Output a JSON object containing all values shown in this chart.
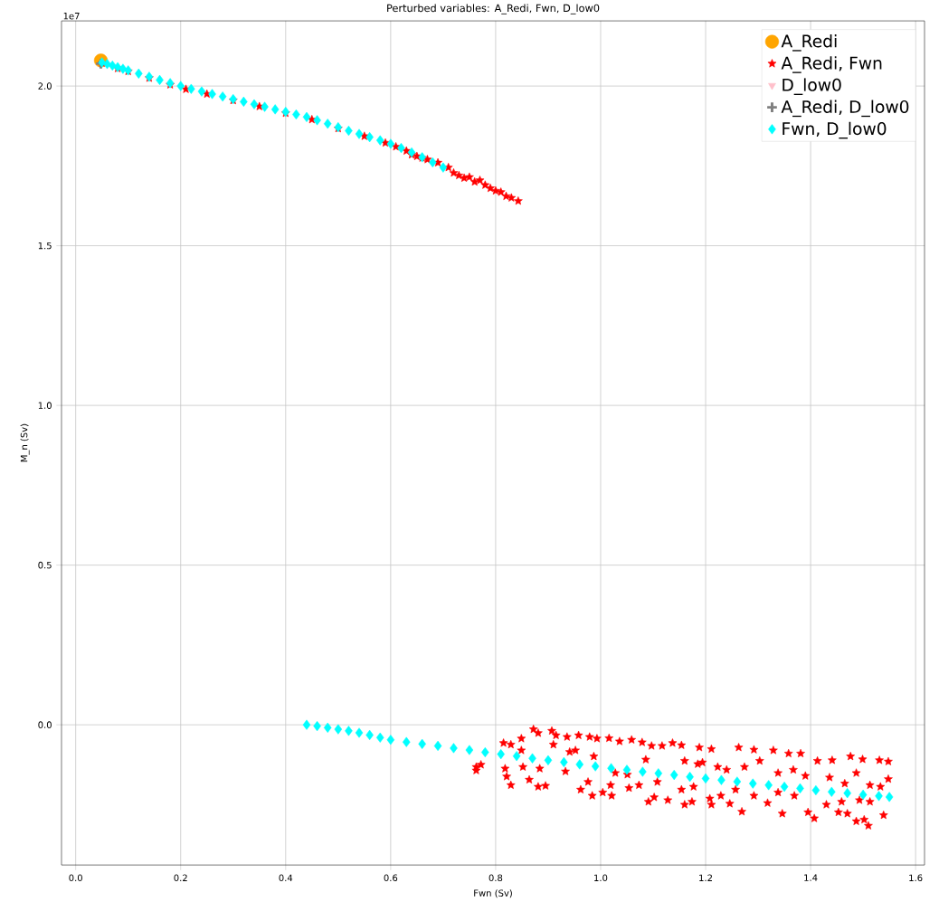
{
  "chart_data": {
    "type": "scatter",
    "title": "Perturbed variables: A_Redi, Fwn, D_low0",
    "xlabel": "Fwn (Sv)",
    "ylabel": "M_n (Sv)",
    "annotations": [
      "1e7"
    ],
    "xlim": [
      -0.027,
      1.617
    ],
    "ylim": [
      -0.439,
      2.204
    ],
    "xticks": [
      {
        "value": 0,
        "label": "0.0"
      },
      0.2,
      0.4,
      0.6,
      0.8,
      {
        "value": 1,
        "label": "1.0"
      },
      1.2,
      1.4,
      1.6
    ],
    "yticks": [
      {
        "value": 0,
        "label": "0.0"
      },
      0.5,
      {
        "value": 1,
        "label": "1.0"
      },
      1.5,
      {
        "value": 2,
        "label": "2.0"
      }
    ],
    "grid": true,
    "legend": "top right",
    "series": [
      {
        "name": "A_Redi",
        "color": "#ffa500",
        "marker": "circle",
        "x": [
          0.048
        ],
        "values": [
          2.08
        ]
      },
      {
        "name": "A_Redi, Fwn",
        "color": "#ff0000",
        "marker": "star",
        "x": [
          0.05,
          0.08,
          0.1,
          0.14,
          0.18,
          0.21,
          0.25,
          0.3,
          0.35,
          0.4,
          0.45,
          0.5,
          0.55,
          0.59,
          0.61,
          0.63,
          0.64,
          0.65,
          0.66,
          0.67,
          0.69,
          0.71,
          0.72,
          0.73,
          0.74,
          0.75,
          0.76,
          0.77,
          0.78,
          0.79,
          0.8,
          0.81,
          0.82,
          0.83,
          0.843,
          0.763,
          0.772,
          0.763,
          0.815,
          0.829,
          0.849,
          0.872,
          0.881,
          0.907,
          0.915,
          0.936,
          0.958,
          0.979,
          0.993,
          0.849,
          0.818,
          0.821,
          0.829,
          0.864,
          0.881,
          0.895,
          0.852,
          0.884,
          0.91,
          0.941,
          0.952,
          0.933,
          0.962,
          0.984,
          0.976,
          0.987,
          1.016,
          1.036,
          1.059,
          1.079,
          1.117,
          1.137,
          1.154,
          1.188,
          1.211,
          1.263,
          1.292,
          1.329,
          1.358,
          1.381,
          1.413,
          1.441,
          1.476,
          1.499,
          1.531,
          1.548,
          1.548,
          1.533,
          1.539,
          1.51,
          1.487,
          1.502,
          1.47,
          1.453,
          1.407,
          1.395,
          1.346,
          1.318,
          1.269,
          1.246,
          1.211,
          1.208,
          1.174,
          1.16,
          1.128,
          1.102,
          1.091,
          1.073,
          1.021,
          1.004,
          1.019,
          1.054,
          1.108,
          1.154,
          1.177,
          1.229,
          1.257,
          1.292,
          1.338,
          1.369,
          1.43,
          1.459,
          1.493,
          1.513,
          1.223,
          1.24,
          1.274,
          1.303,
          1.338,
          1.367,
          1.39,
          1.436,
          1.465,
          1.487,
          1.513,
          1.051,
          1.028,
          1.086,
          1.097,
          1.16,
          1.194,
          1.185
        ],
        "values": [
          2.072,
          2.055,
          2.046,
          2.025,
          2.004,
          1.99,
          1.975,
          1.955,
          1.936,
          1.915,
          1.895,
          1.867,
          1.843,
          1.822,
          1.81,
          1.797,
          1.785,
          1.78,
          1.775,
          1.77,
          1.76,
          1.745,
          1.728,
          1.72,
          1.712,
          1.715,
          1.7,
          1.705,
          1.69,
          1.68,
          1.672,
          1.668,
          1.655,
          1.65,
          1.64,
          -0.132,
          -0.125,
          -0.143,
          -0.057,
          -0.062,
          -0.043,
          -0.014,
          -0.026,
          -0.019,
          -0.033,
          -0.038,
          -0.033,
          -0.038,
          -0.043,
          -0.08,
          -0.137,
          -0.162,
          -0.189,
          -0.172,
          -0.194,
          -0.191,
          -0.132,
          -0.137,
          -0.062,
          -0.085,
          -0.08,
          -0.146,
          -0.203,
          -0.222,
          -0.179,
          -0.099,
          -0.042,
          -0.052,
          -0.047,
          -0.055,
          -0.066,
          -0.057,
          -0.064,
          -0.071,
          -0.076,
          -0.071,
          -0.078,
          -0.08,
          -0.09,
          -0.09,
          -0.113,
          -0.111,
          -0.099,
          -0.108,
          -0.111,
          -0.115,
          -0.17,
          -0.194,
          -0.283,
          -0.316,
          -0.302,
          -0.297,
          -0.278,
          -0.274,
          -0.293,
          -0.274,
          -0.278,
          -0.245,
          -0.272,
          -0.247,
          -0.25,
          -0.231,
          -0.241,
          -0.25,
          -0.236,
          -0.227,
          -0.241,
          -0.189,
          -0.222,
          -0.212,
          -0.189,
          -0.198,
          -0.179,
          -0.203,
          -0.194,
          -0.222,
          -0.203,
          -0.222,
          -0.212,
          -0.222,
          -0.25,
          -0.241,
          -0.236,
          -0.241,
          -0.132,
          -0.141,
          -0.132,
          -0.113,
          -0.151,
          -0.141,
          -0.16,
          -0.165,
          -0.184,
          -0.151,
          -0.189,
          -0.156,
          -0.151,
          -0.109,
          -0.066,
          -0.113,
          -0.118,
          -0.123
        ]
      },
      {
        "name": "D_low0",
        "color": "#ffc0cb",
        "marker": "triangle",
        "x": [
          null
        ],
        "values": [
          null
        ]
      },
      {
        "name": "A_Redi, D_low0",
        "color": "#808080",
        "marker": "cross",
        "x": [
          0.048
        ],
        "values": [
          2.07
        ]
      },
      {
        "name": "Fwn, D_low0",
        "color": "#00ffff",
        "marker": "diamond",
        "x": [
          0.05,
          0.06,
          0.07,
          0.08,
          0.09,
          0.1,
          0.12,
          0.14,
          0.16,
          0.18,
          0.2,
          0.22,
          0.24,
          0.26,
          0.28,
          0.3,
          0.32,
          0.34,
          0.36,
          0.38,
          0.4,
          0.42,
          0.44,
          0.46,
          0.48,
          0.5,
          0.52,
          0.54,
          0.56,
          0.58,
          0.6,
          0.62,
          0.64,
          0.66,
          0.68,
          0.7,
          0.44,
          0.46,
          0.48,
          0.5,
          0.52,
          0.54,
          0.56,
          0.58,
          0.6,
          0.63,
          0.66,
          0.69,
          0.72,
          0.75,
          0.78,
          0.81,
          0.84,
          0.87,
          0.9,
          0.93,
          0.96,
          0.99,
          1.02,
          1.05,
          1.08,
          1.11,
          1.14,
          1.17,
          1.2,
          1.23,
          1.26,
          1.29,
          1.32,
          1.35,
          1.38,
          1.41,
          1.44,
          1.47,
          1.5,
          1.53,
          1.55
        ],
        "values": [
          2.074,
          2.069,
          2.064,
          2.059,
          2.054,
          2.049,
          2.039,
          2.029,
          2.019,
          2.009,
          2.0,
          1.991,
          1.983,
          1.975,
          1.967,
          1.959,
          1.951,
          1.943,
          1.935,
          1.927,
          1.919,
          1.911,
          1.903,
          1.893,
          1.882,
          1.871,
          1.86,
          1.85,
          1.84,
          1.83,
          1.819,
          1.806,
          1.792,
          1.777,
          1.761,
          1.745,
          0.0,
          -0.004,
          -0.009,
          -0.014,
          -0.019,
          -0.025,
          -0.032,
          -0.04,
          -0.047,
          -0.054,
          -0.06,
          -0.066,
          -0.073,
          -0.079,
          -0.086,
          -0.092,
          -0.098,
          -0.105,
          -0.111,
          -0.117,
          -0.124,
          -0.13,
          -0.136,
          -0.141,
          -0.147,
          -0.152,
          -0.157,
          -0.163,
          -0.168,
          -0.173,
          -0.178,
          -0.184,
          -0.189,
          -0.194,
          -0.199,
          -0.205,
          -0.21,
          -0.214,
          -0.219,
          -0.223,
          -0.226
        ]
      }
    ]
  }
}
